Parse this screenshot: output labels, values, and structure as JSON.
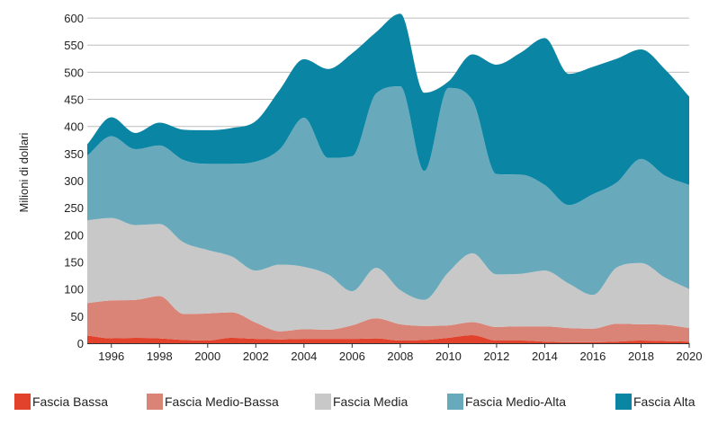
{
  "chart_data": {
    "type": "area",
    "stacked": true,
    "title": "",
    "xlabel": "",
    "ylabel": "Milioni di dollari",
    "xlim": [
      1995,
      2020
    ],
    "ylim": [
      0,
      620
    ],
    "x_ticks": [
      1996,
      1998,
      2000,
      2002,
      2004,
      2006,
      2008,
      2010,
      2012,
      2014,
      2016,
      2018,
      2020
    ],
    "y_ticks": [
      0,
      50,
      100,
      150,
      200,
      250,
      300,
      350,
      400,
      450,
      500,
      550,
      600
    ],
    "grid": "horizontal",
    "legend_position": "bottom",
    "x": [
      1995,
      1996,
      1997,
      1998,
      1999,
      2000,
      2001,
      2002,
      2003,
      2004,
      2005,
      2006,
      2007,
      2008,
      2009,
      2010,
      2011,
      2012,
      2013,
      2014,
      2015,
      2016,
      2017,
      2018,
      2019,
      2020
    ],
    "series": [
      {
        "name": "Fascia Bassa",
        "color": "#e2412b",
        "values": [
          14,
          9,
          10,
          9,
          6,
          5,
          10,
          8,
          7,
          8,
          8,
          8,
          9,
          5,
          6,
          10,
          15,
          5,
          5,
          3,
          2,
          2,
          3,
          5,
          4,
          3
        ]
      },
      {
        "name": "Fascia Medio-Bassa",
        "color": "#d98476",
        "values": [
          60,
          70,
          70,
          78,
          48,
          50,
          47,
          30,
          15,
          18,
          17,
          25,
          37,
          30,
          26,
          23,
          24,
          25,
          26,
          28,
          26,
          25,
          33,
          30,
          30,
          25
        ]
      },
      {
        "name": "Fascia Media",
        "color": "#c8c8c8",
        "values": [
          153,
          152,
          138,
          133,
          132,
          117,
          103,
          96,
          123,
          115,
          102,
          63,
          93,
          63,
          48,
          98,
          127,
          97,
          97,
          103,
          82,
          62,
          104,
          113,
          87,
          72
        ]
      },
      {
        "name": "Fascia Medio-Alta",
        "color": "#68aabb",
        "values": [
          119,
          151,
          140,
          145,
          152,
          159,
          171,
          201,
          213,
          275,
          215,
          249,
          322,
          376,
          238,
          340,
          282,
          185,
          183,
          158,
          145,
          186,
          157,
          192,
          188,
          192
        ]
      },
      {
        "name": "Fascia Alta",
        "color": "#0a86a4",
        "values": [
          21,
          35,
          30,
          42,
          56,
          62,
          66,
          75,
          110,
          108,
          164,
          190,
          113,
          134,
          144,
          12,
          85,
          202,
          225,
          271,
          242,
          235,
          228,
          202,
          196,
          163
        ]
      }
    ]
  }
}
